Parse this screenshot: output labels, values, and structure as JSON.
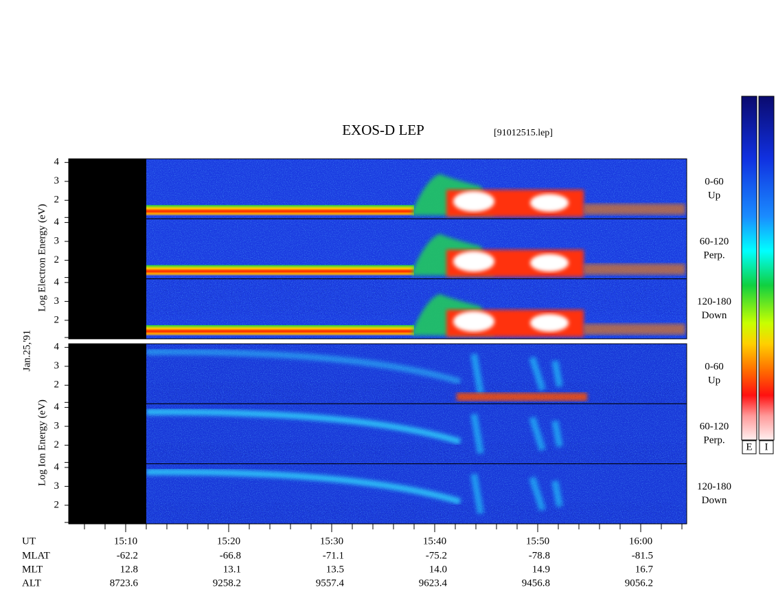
{
  "title": "EXOS-D LEP",
  "file": "[91012515.lep]",
  "date": "Jan.25,'91",
  "groups": [
    {
      "axis_label": "Log  Electron  Energy (eV)",
      "panels": [
        {
          "pitch": "0-60",
          "direction": "Up"
        },
        {
          "pitch": "60-120",
          "direction": "Perp."
        },
        {
          "pitch": "120-180",
          "direction": "Down"
        }
      ]
    },
    {
      "axis_label": "Log  Ion  Energy (eV)",
      "panels": [
        {
          "pitch": "0-60",
          "direction": "Up"
        },
        {
          "pitch": "60-120",
          "direction": "Perp."
        },
        {
          "pitch": "120-180",
          "direction": "Down"
        }
      ]
    }
  ],
  "energy_ticks": [
    "2",
    "3",
    "4"
  ],
  "orbit": {
    "rows": [
      {
        "label": "UT",
        "values": [
          "15:10",
          "15:20",
          "15:30",
          "15:40",
          "15:50",
          "16:00"
        ]
      },
      {
        "label": "MLAT",
        "values": [
          "-62.2",
          "-66.8",
          "-71.1",
          "-75.2",
          "-78.8",
          "-81.5"
        ]
      },
      {
        "label": "MLT",
        "values": [
          "12.8",
          "13.1",
          "13.5",
          "14.0",
          "14.9",
          "16.7"
        ]
      },
      {
        "label": "ALT",
        "values": [
          "8723.6",
          "9258.2",
          "9557.4",
          "9623.4",
          "9456.8",
          "9056.2"
        ]
      }
    ]
  },
  "colorbars": [
    "E",
    "I"
  ]
}
